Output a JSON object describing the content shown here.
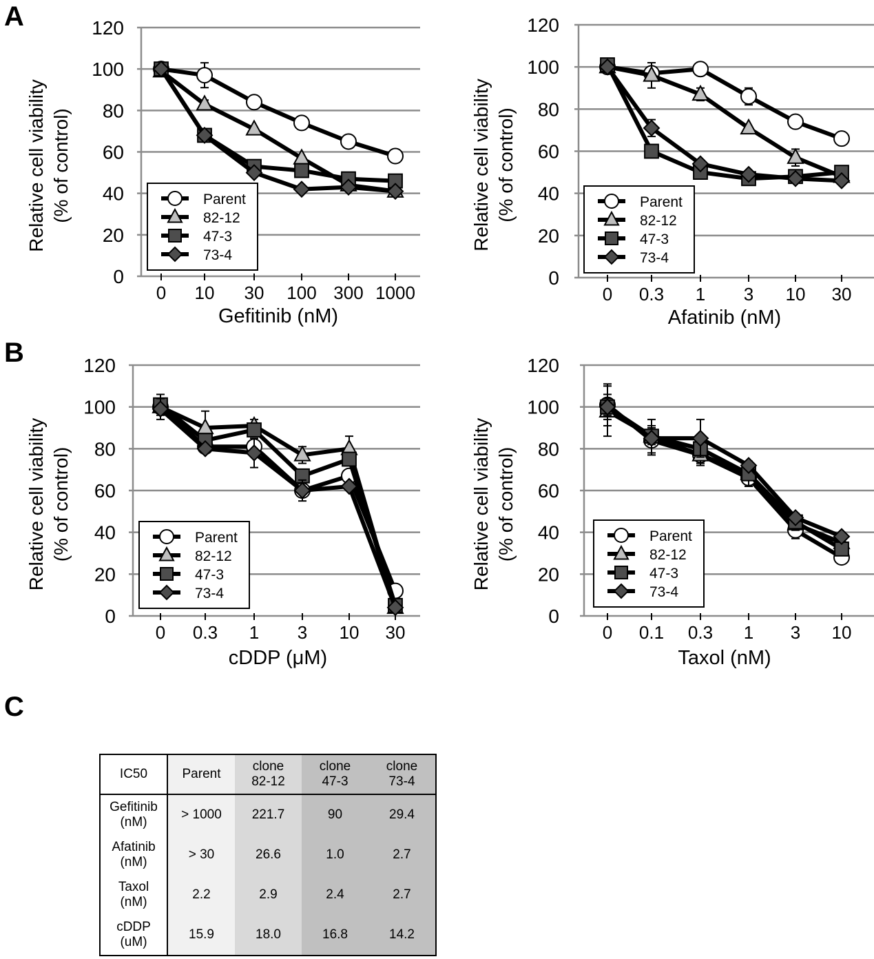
{
  "panels": {
    "A": "A",
    "B": "B",
    "C": "C"
  },
  "legend_labels": [
    "Parent",
    "82-12",
    "47-3",
    "73-4"
  ],
  "colors": {
    "parent": "#ffffff",
    "c82_12": "#bfbfbf",
    "c47_3": "#4d4d4d",
    "c73_4": "#4d4d4d",
    "grid": "#8c8c8c",
    "line": "#000000"
  },
  "chart_data": [
    {
      "id": "gefitinib",
      "type": "line",
      "title": "",
      "xlabel": "Gefitinib (nM)",
      "ylabel": "Relative cell viability (% of control)",
      "ylabel_lines": [
        "Relative cell viability",
        "(% of control)"
      ],
      "categories": [
        "0",
        "10",
        "30",
        "100",
        "300",
        "1000"
      ],
      "ylim": [
        0,
        120
      ],
      "yticks": [
        0,
        20,
        40,
        60,
        80,
        100,
        120
      ],
      "grid": true,
      "legend": "bottom-left",
      "series": [
        {
          "name": "Parent",
          "marker": "circle",
          "values": [
            100,
            97,
            84,
            74,
            65,
            58
          ],
          "errors": [
            2,
            6,
            1,
            1,
            2,
            1
          ]
        },
        {
          "name": "82-12",
          "marker": "triangle",
          "values": [
            99,
            83,
            71,
            57,
            44,
            41
          ],
          "errors": [
            2,
            2,
            1,
            1,
            1,
            1
          ]
        },
        {
          "name": "47-3",
          "marker": "square",
          "values": [
            100,
            68,
            53,
            51,
            47,
            46
          ],
          "errors": [
            1,
            1,
            1,
            1,
            1,
            1
          ]
        },
        {
          "name": "73-4",
          "marker": "diamond",
          "values": [
            100,
            68,
            50,
            42,
            43,
            41
          ],
          "errors": [
            1,
            1,
            1,
            1,
            1,
            1
          ]
        }
      ]
    },
    {
      "id": "afatinib",
      "type": "line",
      "title": "",
      "xlabel": "Afatinib (nM)",
      "ylabel": "Relative cell viability (% of control)",
      "ylabel_lines": [
        "Relative cell viability",
        "(% of control)"
      ],
      "categories": [
        "0",
        "0.3",
        "1",
        "3",
        "10",
        "30"
      ],
      "ylim": [
        0,
        120
      ],
      "yticks": [
        0,
        20,
        40,
        60,
        80,
        100,
        120
      ],
      "grid": true,
      "legend": "bottom-left",
      "series": [
        {
          "name": "Parent",
          "marker": "circle",
          "values": [
            100,
            97,
            99,
            86,
            74,
            66
          ],
          "errors": [
            1,
            2,
            3,
            4,
            1,
            1
          ]
        },
        {
          "name": "82-12",
          "marker": "triangle",
          "values": [
            100,
            96,
            87,
            71,
            57,
            48
          ],
          "errors": [
            1,
            6,
            3,
            1,
            4,
            1
          ]
        },
        {
          "name": "47-3",
          "marker": "square",
          "values": [
            101,
            60,
            50,
            47,
            48,
            50
          ],
          "errors": [
            1,
            1,
            1,
            3,
            1,
            1
          ]
        },
        {
          "name": "73-4",
          "marker": "diamond",
          "values": [
            100,
            71,
            54,
            49,
            47,
            46
          ],
          "errors": [
            1,
            4,
            1,
            1,
            1,
            1
          ]
        }
      ]
    },
    {
      "id": "cddp",
      "type": "line",
      "title": "",
      "xlabel": "cDDP (μM)",
      "ylabel": "Relative cell viability (% of control)",
      "ylabel_lines": [
        "Relative cell viability",
        "(% of control)"
      ],
      "categories": [
        "0",
        "0.3",
        "1",
        "3",
        "10",
        "30"
      ],
      "ylim": [
        0,
        120
      ],
      "yticks": [
        0,
        20,
        40,
        60,
        80,
        100,
        120
      ],
      "grid": true,
      "legend": "bottom-left",
      "series": [
        {
          "name": "Parent",
          "marker": "circle",
          "values": [
            100,
            81,
            81,
            60,
            67,
            12
          ],
          "errors": [
            3,
            1,
            1,
            1,
            1,
            1
          ]
        },
        {
          "name": "82-12",
          "marker": "triangle",
          "values": [
            100,
            90,
            91,
            77,
            80,
            4
          ],
          "errors": [
            3,
            8,
            3,
            4,
            6,
            1
          ]
        },
        {
          "name": "47-3",
          "marker": "square",
          "values": [
            101,
            84,
            89,
            67,
            75,
            5
          ],
          "errors": [
            5,
            2,
            1,
            1,
            1,
            1
          ]
        },
        {
          "name": "73-4",
          "marker": "diamond",
          "values": [
            99,
            80,
            78,
            60,
            62,
            4
          ],
          "errors": [
            5,
            1,
            7,
            5,
            1,
            1
          ]
        }
      ]
    },
    {
      "id": "taxol",
      "type": "line",
      "title": "",
      "xlabel": "Taxol (nM)",
      "ylabel": "Relative cell viability (% of control)",
      "ylabel_lines": [
        "Relative cell viability",
        "(% of control)"
      ],
      "categories": [
        "0",
        "0.1",
        "0.3",
        "1",
        "3",
        "10"
      ],
      "ylim": [
        0,
        120
      ],
      "yticks": [
        0,
        20,
        40,
        60,
        80,
        100,
        120
      ],
      "grid": true,
      "legend": "bottom-left",
      "series": [
        {
          "name": "Parent",
          "marker": "circle",
          "values": [
            101,
            84,
            77,
            66,
            41,
            28
          ],
          "errors": [
            10,
            7,
            5,
            4,
            4,
            1
          ]
        },
        {
          "name": "82-12",
          "marker": "triangle",
          "values": [
            98,
            86,
            77,
            68,
            44,
            35
          ],
          "errors": [
            12,
            4,
            4,
            3,
            3,
            1
          ]
        },
        {
          "name": "47-3",
          "marker": "square",
          "values": [
            100,
            86,
            80,
            68,
            45,
            32
          ],
          "errors": [
            6,
            8,
            3,
            6,
            3,
            1
          ]
        },
        {
          "name": "73-4",
          "marker": "diamond",
          "values": [
            100,
            85,
            85,
            72,
            47,
            38
          ],
          "errors": [
            4,
            1,
            9,
            1,
            2,
            1
          ]
        }
      ]
    }
  ],
  "table": {
    "header": [
      "IC50",
      "Parent",
      "clone\n82-12",
      "clone\n47-3",
      "clone\n73-4"
    ],
    "rows": [
      [
        "Gefitinib\n(nM)",
        "> 1000",
        "221.7",
        "90",
        "29.4"
      ],
      [
        "Afatinib\n(nM)",
        "> 30",
        "26.6",
        "1.0",
        "2.7"
      ],
      [
        "Taxol\n(nM)",
        "2.2",
        "2.9",
        "2.4",
        "2.7"
      ],
      [
        "cDDP\n(uM)",
        "15.9",
        "18.0",
        "16.8",
        "14.2"
      ]
    ]
  }
}
